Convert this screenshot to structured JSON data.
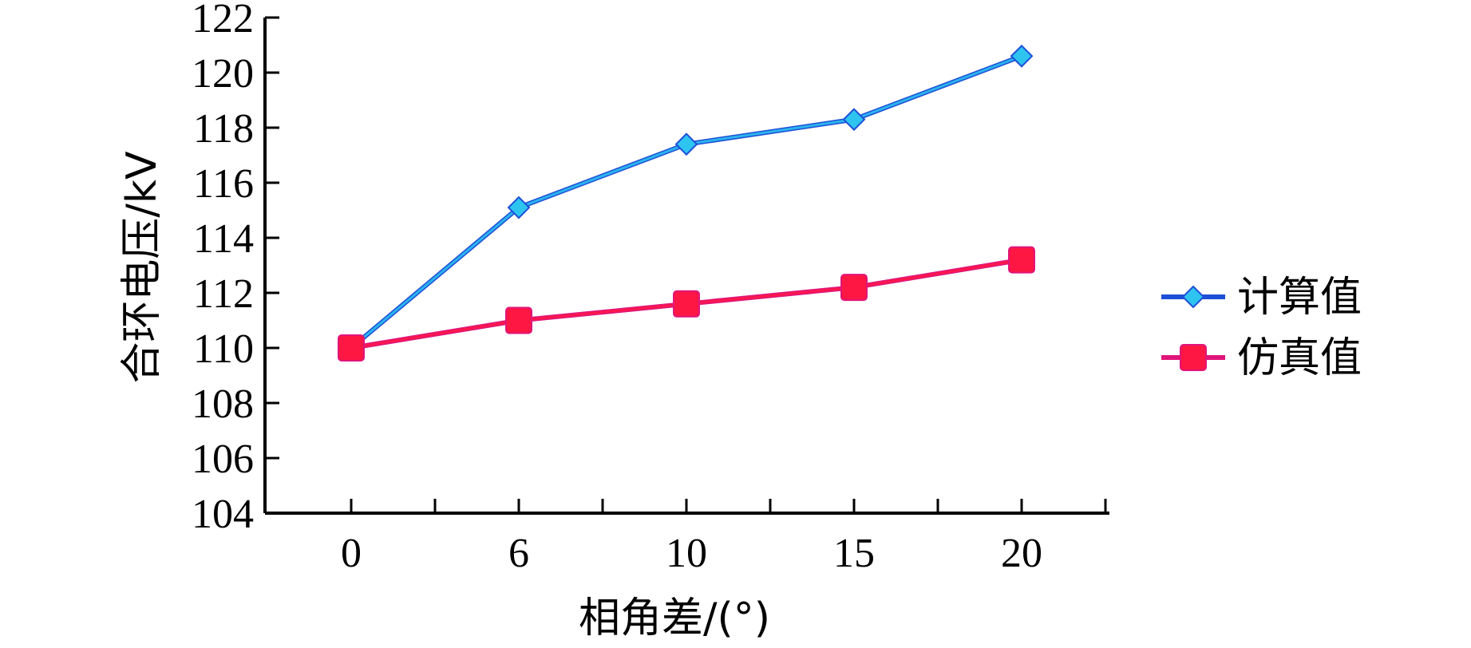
{
  "chart_data": {
    "type": "line",
    "xlabel": "相角差/(°)",
    "ylabel": "合环电压/kV",
    "x": [
      0,
      6,
      10,
      15,
      20
    ],
    "x_ticks": [
      "0",
      "6",
      "10",
      "15",
      "20"
    ],
    "ylim": [
      104,
      122
    ],
    "y_ticks": [
      104,
      106,
      108,
      110,
      112,
      114,
      116,
      118,
      120,
      122
    ],
    "grid": false,
    "legend_position": "right",
    "series": [
      {
        "name": "计算值",
        "values": [
          110.0,
          115.1,
          117.4,
          118.3,
          120.6
        ],
        "color": "#2ec4f0",
        "line_color": "#1e4fd8",
        "marker": "diamond"
      },
      {
        "name": "仿真值",
        "values": [
          110.0,
          111.0,
          111.6,
          112.2,
          113.2
        ],
        "color": "#ff1744",
        "line_color": "#e0157a",
        "marker": "square"
      }
    ]
  }
}
